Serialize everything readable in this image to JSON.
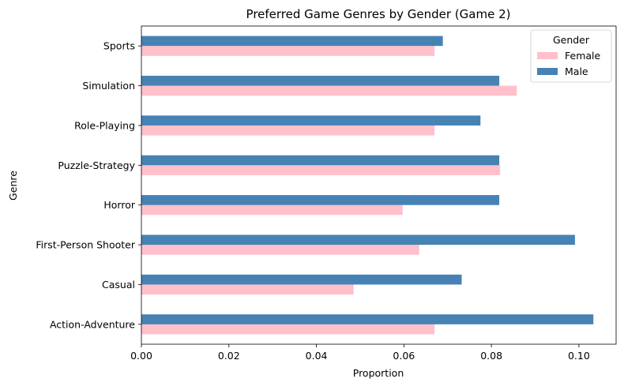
{
  "chart_data": {
    "type": "bar",
    "orientation": "horizontal",
    "title": "Preferred Game Genres by Gender (Game 2)",
    "xlabel": "Proportion",
    "ylabel": "Genre",
    "xlim": [
      0,
      0.1085
    ],
    "xticks": [
      0.0,
      0.02,
      0.04,
      0.06,
      0.08,
      0.1
    ],
    "xtick_labels": [
      "0.00",
      "0.02",
      "0.04",
      "0.06",
      "0.08",
      "0.10"
    ],
    "categories": [
      "Action-Adventure",
      "Casual",
      "First-Person Shooter",
      "Horror",
      "Puzzle-Strategy",
      "Role-Playing",
      "Simulation",
      "Sports"
    ],
    "series": [
      {
        "name": "Female",
        "color": "#ffc0cb",
        "values": [
          0.067,
          0.0485,
          0.0635,
          0.0597,
          0.082,
          0.067,
          0.0858,
          0.067
        ]
      },
      {
        "name": "Male",
        "color": "#4682b4",
        "values": [
          0.1033,
          0.0732,
          0.0991,
          0.0818,
          0.0818,
          0.0775,
          0.0818,
          0.0689
        ]
      }
    ],
    "legend": {
      "title": "Gender",
      "position": "top-right"
    },
    "grid": false
  }
}
